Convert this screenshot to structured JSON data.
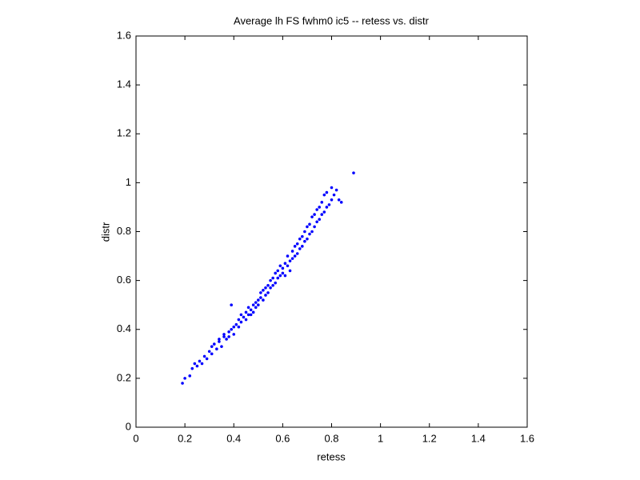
{
  "chart_data": {
    "type": "scatter",
    "title": "Average lh FS fwhm0 ic5 -- retess vs. distr",
    "x_label": "retess",
    "y_label": "distr",
    "color": "#0000ff",
    "xlim": [
      0,
      1.6
    ],
    "ylim": [
      0,
      1.6
    ],
    "xticks": [
      0,
      0.2,
      0.4,
      0.6,
      0.8,
      1,
      1.2,
      1.4,
      1.6
    ],
    "yticks": [
      0,
      0.2,
      0.4,
      0.6,
      0.8,
      1,
      1.2,
      1.4,
      1.6
    ],
    "x": [
      0.19,
      0.2,
      0.22,
      0.23,
      0.24,
      0.25,
      0.26,
      0.27,
      0.28,
      0.29,
      0.3,
      0.31,
      0.31,
      0.32,
      0.33,
      0.34,
      0.34,
      0.35,
      0.36,
      0.36,
      0.37,
      0.38,
      0.38,
      0.39,
      0.39,
      0.4,
      0.4,
      0.41,
      0.42,
      0.42,
      0.43,
      0.43,
      0.44,
      0.45,
      0.45,
      0.46,
      0.46,
      0.47,
      0.47,
      0.48,
      0.48,
      0.49,
      0.49,
      0.5,
      0.5,
      0.51,
      0.51,
      0.52,
      0.52,
      0.53,
      0.53,
      0.54,
      0.54,
      0.55,
      0.55,
      0.56,
      0.56,
      0.57,
      0.57,
      0.58,
      0.58,
      0.59,
      0.59,
      0.6,
      0.6,
      0.61,
      0.61,
      0.62,
      0.62,
      0.63,
      0.63,
      0.64,
      0.64,
      0.65,
      0.65,
      0.66,
      0.66,
      0.67,
      0.67,
      0.68,
      0.68,
      0.69,
      0.69,
      0.7,
      0.7,
      0.71,
      0.71,
      0.72,
      0.72,
      0.73,
      0.73,
      0.74,
      0.74,
      0.75,
      0.75,
      0.76,
      0.76,
      0.77,
      0.77,
      0.78,
      0.78,
      0.79,
      0.8,
      0.8,
      0.81,
      0.82,
      0.83,
      0.84,
      0.89
    ],
    "y": [
      0.18,
      0.2,
      0.21,
      0.24,
      0.26,
      0.25,
      0.27,
      0.26,
      0.29,
      0.28,
      0.31,
      0.3,
      0.33,
      0.34,
      0.32,
      0.35,
      0.36,
      0.33,
      0.37,
      0.38,
      0.36,
      0.39,
      0.37,
      0.4,
      0.5,
      0.41,
      0.38,
      0.42,
      0.44,
      0.41,
      0.43,
      0.46,
      0.45,
      0.44,
      0.47,
      0.46,
      0.49,
      0.48,
      0.46,
      0.5,
      0.47,
      0.51,
      0.49,
      0.52,
      0.5,
      0.53,
      0.55,
      0.52,
      0.56,
      0.54,
      0.57,
      0.55,
      0.58,
      0.57,
      0.6,
      0.58,
      0.61,
      0.59,
      0.63,
      0.61,
      0.64,
      0.62,
      0.66,
      0.63,
      0.65,
      0.62,
      0.67,
      0.66,
      0.7,
      0.68,
      0.64,
      0.69,
      0.72,
      0.7,
      0.74,
      0.71,
      0.75,
      0.73,
      0.77,
      0.74,
      0.78,
      0.76,
      0.8,
      0.77,
      0.82,
      0.79,
      0.83,
      0.8,
      0.86,
      0.82,
      0.87,
      0.84,
      0.89,
      0.85,
      0.9,
      0.87,
      0.92,
      0.88,
      0.95,
      0.9,
      0.96,
      0.91,
      0.93,
      0.98,
      0.95,
      0.97,
      0.93,
      0.92,
      1.04
    ]
  }
}
